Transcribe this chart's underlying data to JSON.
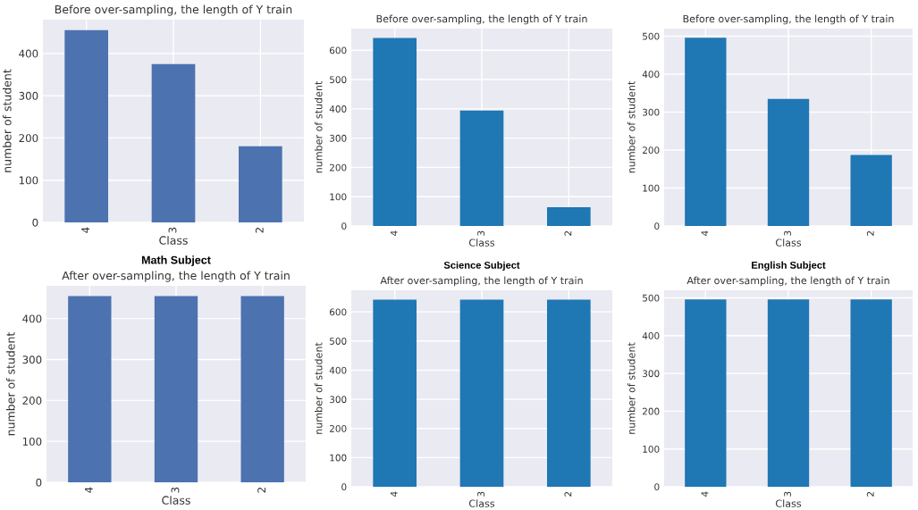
{
  "chart_data": [
    {
      "type": "bar",
      "title": "Before over-sampling, the length of Y train",
      "xlabel": "Class",
      "ylabel": "number of student",
      "categories": [
        "4",
        "3",
        "2"
      ],
      "values": [
        455,
        375,
        180
      ],
      "color": "#4c72b0",
      "ylim": [
        0,
        480
      ],
      "yticks": [
        0,
        100,
        200,
        300,
        400
      ],
      "grid": true
    },
    {
      "type": "bar",
      "title": "Before over-sampling, the length of Y train",
      "xlabel": "Class",
      "ylabel": "number of student",
      "categories": [
        "4",
        "3",
        "2"
      ],
      "values": [
        642,
        394,
        64
      ],
      "color": "#1f77b4",
      "ylim": [
        0,
        674
      ],
      "yticks": [
        0,
        100,
        200,
        300,
        400,
        500,
        600
      ],
      "grid": true
    },
    {
      "type": "bar",
      "title": "Before over-sampling, the length of Y train",
      "xlabel": "Class",
      "ylabel": "number of student",
      "categories": [
        "4",
        "3",
        "2"
      ],
      "values": [
        496,
        335,
        187
      ],
      "color": "#1f77b4",
      "ylim": [
        0,
        520
      ],
      "yticks": [
        0,
        100,
        200,
        300,
        400,
        500
      ],
      "grid": true
    },
    {
      "type": "bar",
      "title": "Math Subject",
      "subtitle": "After over-sampling, the length of Y train",
      "xlabel": "Class",
      "ylabel": "number of student",
      "categories": [
        "4",
        "3",
        "2"
      ],
      "values": [
        455,
        455,
        455
      ],
      "color": "#4c72b0",
      "ylim": [
        0,
        480
      ],
      "yticks": [
        0,
        100,
        200,
        300,
        400
      ],
      "grid": true
    },
    {
      "type": "bar",
      "title": "Science Subject",
      "subtitle": "After over-sampling, the length of Y train",
      "xlabel": "Class",
      "ylabel": "number of student",
      "categories": [
        "4",
        "3",
        "2"
      ],
      "values": [
        642,
        642,
        642
      ],
      "color": "#1f77b4",
      "ylim": [
        0,
        674
      ],
      "yticks": [
        0,
        100,
        200,
        300,
        400,
        500,
        600
      ],
      "grid": true
    },
    {
      "type": "bar",
      "title": "English Subject",
      "subtitle": "After over-sampling, the length of Y train",
      "xlabel": "Class",
      "ylabel": "number of student",
      "categories": [
        "4",
        "3",
        "2"
      ],
      "values": [
        496,
        496,
        496
      ],
      "color": "#1f77b4",
      "ylim": [
        0,
        520
      ],
      "yticks": [
        0,
        100,
        200,
        300,
        400,
        500
      ],
      "grid": true
    }
  ]
}
